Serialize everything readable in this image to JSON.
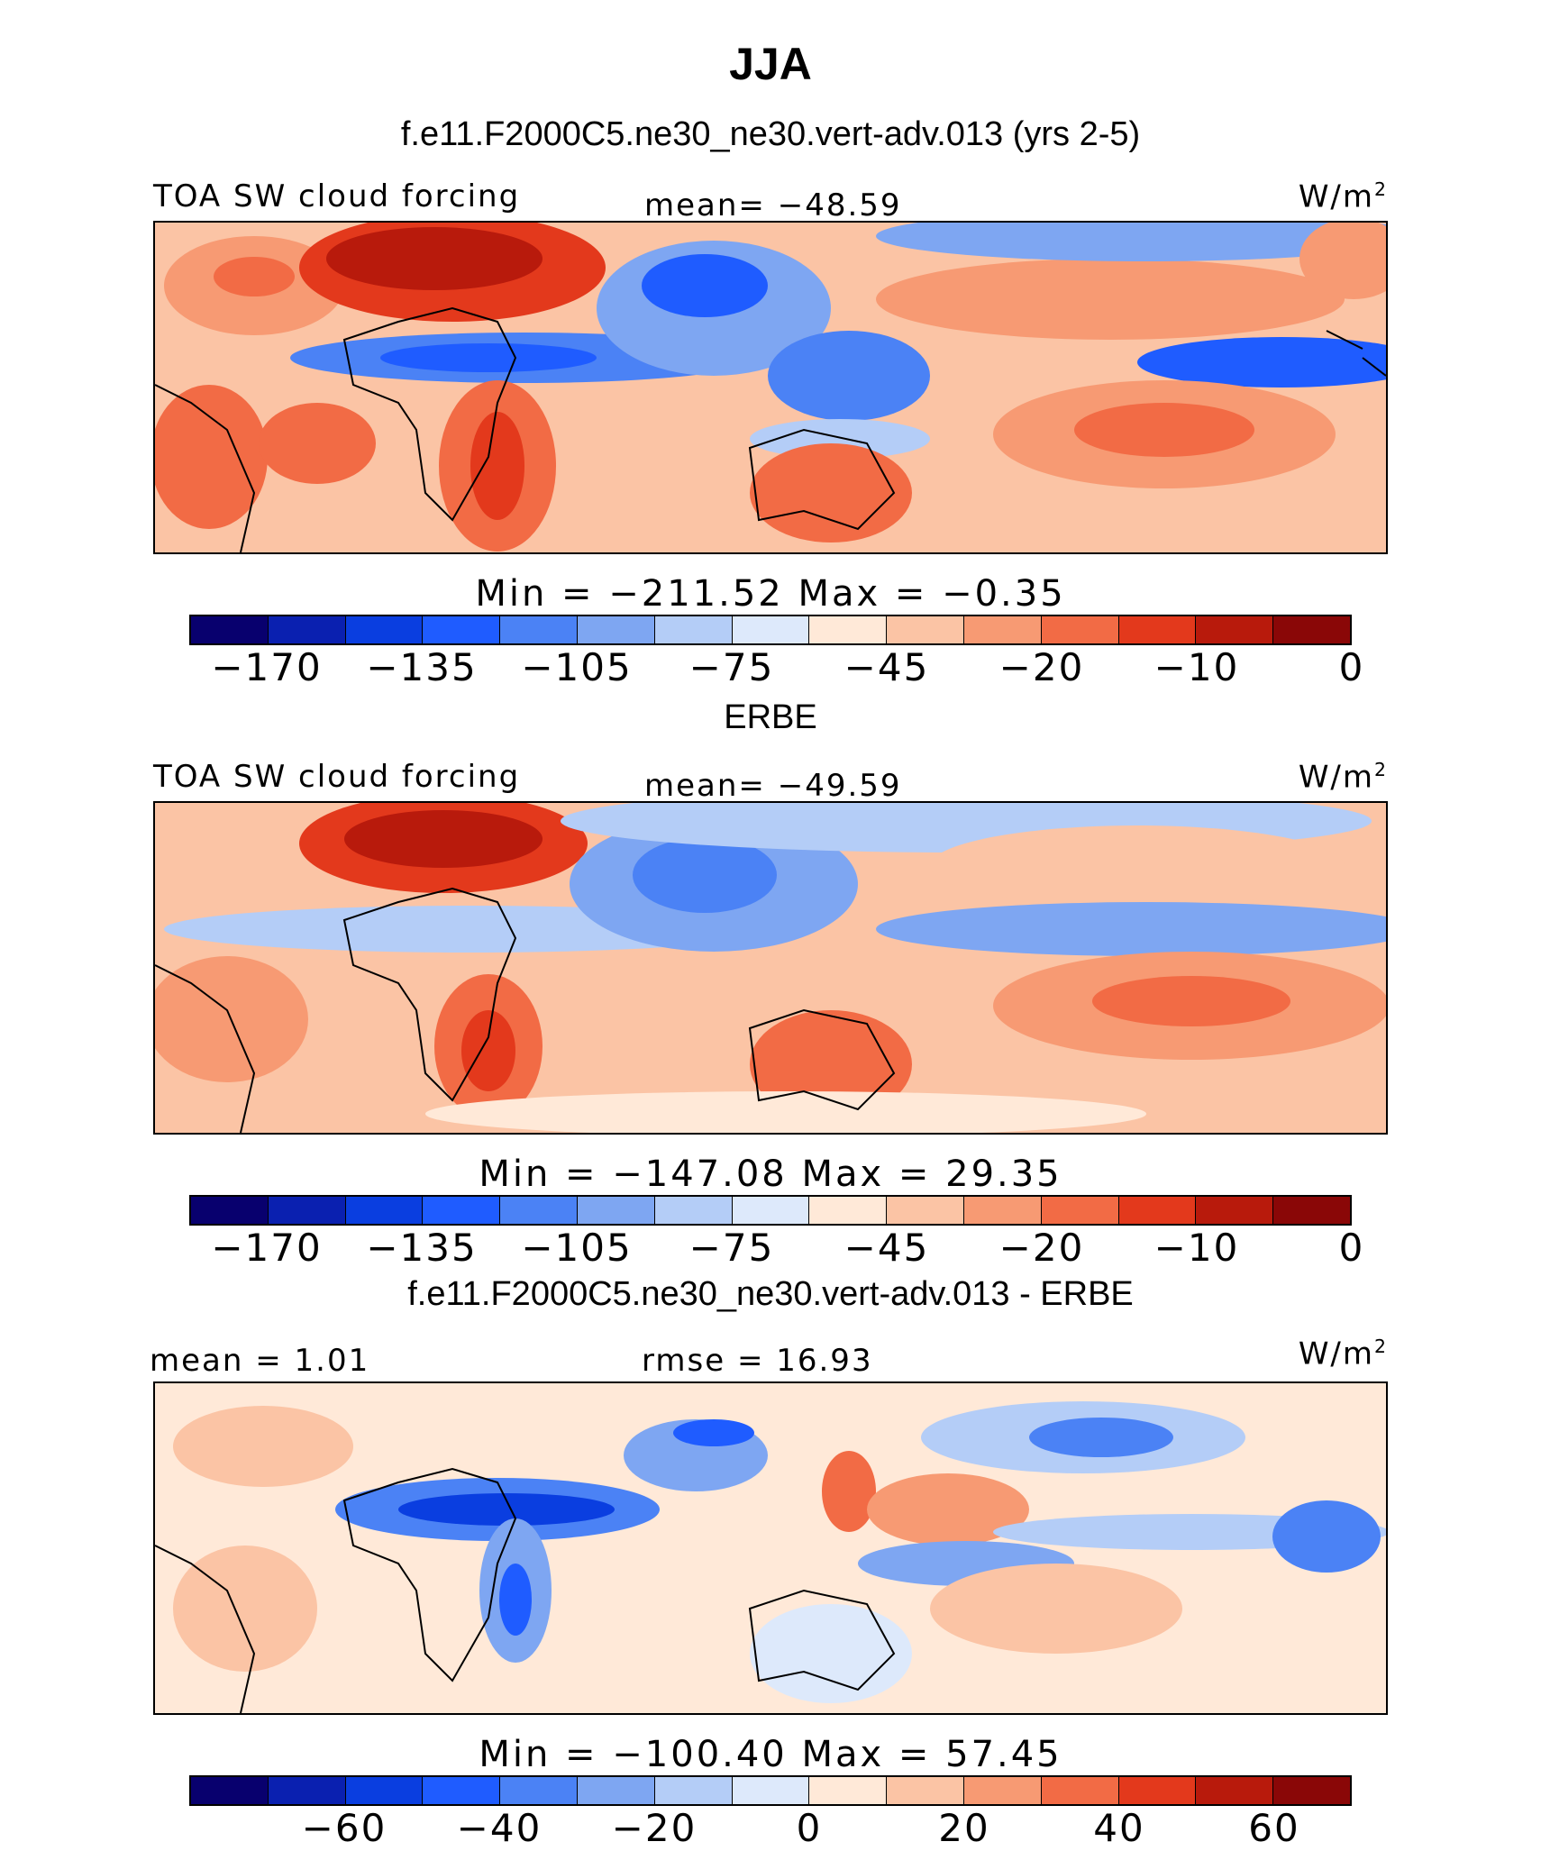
{
  "season": "JJA",
  "colors": [
    "#08006e",
    "#0a20b0",
    "#0a3ee0",
    "#1f5cff",
    "#4b82f5",
    "#7ea6f2",
    "#b4cdf7",
    "#dde9fb",
    "#ffe9d8",
    "#fbc4a5",
    "#f79a73",
    "#f26b45",
    "#e3391c",
    "#b81a0c",
    "#8a0707"
  ],
  "panel1": {
    "title": "f.e11.F2000C5.ne30_ne30.vert-adv.013 (yrs 2-5)",
    "variable": "TOA SW cloud forcing",
    "stat": "mean= −48.59",
    "units_base": "W/m",
    "units_exp": "2",
    "minmax": "Min  =  −211.52  Max  =   −0.35",
    "ticks": [
      "−170",
      "−135",
      "−105",
      "−75",
      "−45",
      "−20",
      "−10",
      "0"
    ]
  },
  "panel2": {
    "title": "ERBE",
    "variable": "TOA SW cloud forcing",
    "stat": "mean= −49.59",
    "units_base": "W/m",
    "units_exp": "2",
    "minmax": "Min  =  −147.08  Max  =   29.35",
    "ticks": [
      "−170",
      "−135",
      "−105",
      "−75",
      "−45",
      "−20",
      "−10",
      "0"
    ]
  },
  "panel3": {
    "title": "f.e11.F2000C5.ne30_ne30.vert-adv.013 - ERBE",
    "stat_left": "mean  =    1.01",
    "stat_mid": "rmse  =   16.93",
    "units_base": "W/m",
    "units_exp": "2",
    "minmax": "Min  =  −100.40  Max  =   57.45",
    "ticks": [
      "−60",
      "−40",
      "−20",
      "0",
      "20",
      "40",
      "60"
    ]
  }
}
